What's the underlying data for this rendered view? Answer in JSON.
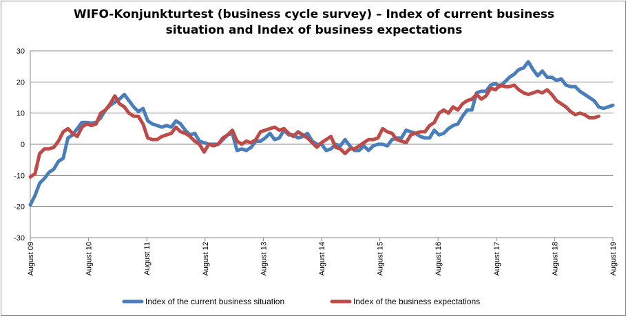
{
  "chart_data": {
    "type": "line",
    "title_line1": "WIFO-Konjunkturtest (business cycle survey) – Index of current business",
    "title_line2": "situation and Index of business expectations",
    "xlabel": "",
    "ylabel": "",
    "ylim": [
      -30,
      30
    ],
    "yticks": [
      30,
      20,
      10,
      0,
      -10,
      -20,
      -30
    ],
    "xtick_labels": [
      "August 09",
      "August 10",
      "August 11",
      "August 12",
      "August 13",
      "August 14",
      "August 15",
      "August 16",
      "August 17",
      "August 18",
      "August 19"
    ],
    "x_start": "August 09",
    "x_end": "August 19",
    "grid": "horizontal",
    "legend_position": "bottom",
    "series": [
      {
        "name": "Index of the current business situation",
        "color": "#4a7ebb",
        "values": [
          -19.5,
          -16.5,
          -12.5,
          -11,
          -9,
          -8,
          -5.5,
          -4.5,
          2,
          3,
          5,
          7,
          7,
          6.8,
          7,
          8.5,
          11,
          12.5,
          13.5,
          14.5,
          16,
          14,
          12,
          10.5,
          11.5,
          7.5,
          6.5,
          6,
          5.5,
          6,
          5.5,
          7.5,
          6.5,
          4.5,
          3,
          3.5,
          1,
          0.5,
          0,
          0,
          0,
          1.5,
          3,
          3.5,
          -2,
          -1.5,
          -2,
          -1,
          1,
          1,
          2,
          3.5,
          1.5,
          2,
          4.5,
          3,
          3,
          2,
          2.5,
          3.5,
          1,
          0,
          0,
          -2,
          -1.5,
          0,
          -0.5,
          1.5,
          -0.5,
          -2,
          -2,
          -0.5,
          -2,
          -0.5,
          0,
          0,
          -0.5,
          1.5,
          2,
          2,
          4.5,
          4,
          3.5,
          2.5,
          2,
          2,
          4.5,
          3,
          3.5,
          5,
          6,
          6.5,
          9,
          11,
          11,
          16.5,
          17,
          17,
          19,
          19.5,
          18.5,
          20,
          21.5,
          22.5,
          24,
          24.5,
          26.5,
          24,
          22,
          23.5,
          21.5,
          21.5,
          20.5,
          21,
          19,
          18.5,
          18.5,
          17,
          16,
          15,
          14,
          12,
          11.5,
          12,
          12.5
        ]
      },
      {
        "name": "Index of the business expectations",
        "color": "#be4b48",
        "values": [
          -10.5,
          -9.5,
          -3,
          -1.5,
          -1.5,
          -1,
          1,
          4,
          5,
          3.5,
          2.5,
          5.5,
          6.5,
          6,
          6.5,
          10,
          11,
          13,
          15.5,
          13,
          12,
          10,
          9,
          9,
          6.5,
          2,
          1.5,
          1.5,
          2.5,
          3,
          3.5,
          5.5,
          4,
          3.5,
          2.5,
          1,
          0,
          -2.5,
          0,
          -0.5,
          0,
          2,
          3,
          4.5,
          1,
          0,
          1,
          0.5,
          1.5,
          4,
          4.5,
          5,
          5.5,
          4.5,
          5,
          3.5,
          2.5,
          4,
          3,
          2,
          0.5,
          -1,
          0.5,
          1.5,
          2.5,
          -1,
          -1.5,
          -3,
          -1.5,
          -1.5,
          -0.5,
          0.5,
          1.5,
          1.5,
          2,
          5,
          4,
          3.5,
          1.5,
          1,
          0.5,
          3,
          3.5,
          4,
          4,
          6,
          7,
          10,
          11,
          10,
          12,
          11,
          13,
          14,
          14.5,
          16,
          14.5,
          15.5,
          18,
          17.5,
          19,
          18.5,
          18.5,
          19,
          17.5,
          16.5,
          16,
          16.5,
          17,
          16.5,
          17.5,
          16,
          14,
          13,
          12,
          10.5,
          9.5,
          10,
          9.5,
          8.5,
          8.5,
          9
        ]
      }
    ]
  }
}
